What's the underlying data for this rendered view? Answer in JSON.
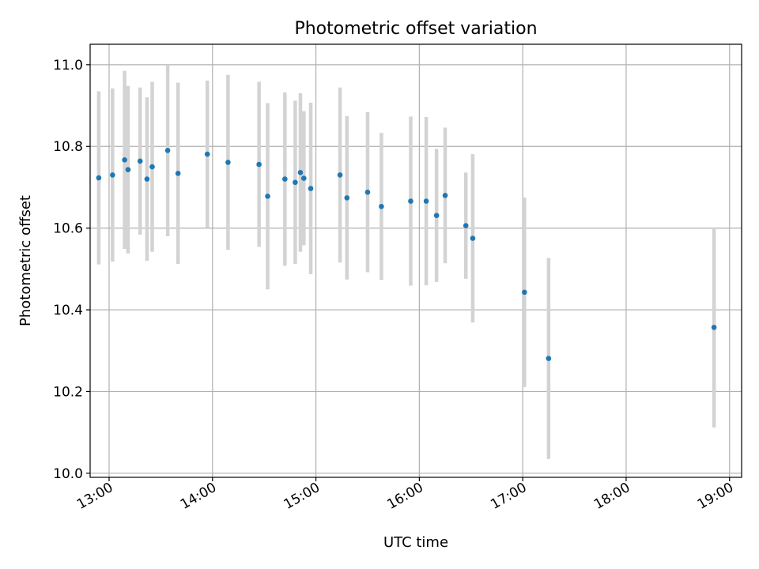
{
  "chart_data": {
    "type": "scatter",
    "title": "Photometric offset variation",
    "xlabel": "UTC time",
    "ylabel": "Photometric offset",
    "x_ticks": [
      "13:00",
      "14:00",
      "15:00",
      "16:00",
      "17:00",
      "18:00",
      "19:00"
    ],
    "y_ticks": [
      "10.0",
      "10.2",
      "10.4",
      "10.6",
      "10.8",
      "11.0"
    ],
    "xlim": [
      "12:49",
      "19:07"
    ],
    "ylim": [
      9.99,
      11.05
    ],
    "grid": true,
    "marker_color": "#1f77b4",
    "errorbar_color": "#d3d3d3",
    "points": [
      {
        "x": "12:54",
        "y": 10.723,
        "err": 0.212
      },
      {
        "x": "13:02",
        "y": 10.73,
        "err": 0.212
      },
      {
        "x": "13:09",
        "y": 10.767,
        "err": 0.218
      },
      {
        "x": "13:11",
        "y": 10.743,
        "err": 0.205
      },
      {
        "x": "13:18",
        "y": 10.764,
        "err": 0.18
      },
      {
        "x": "13:22",
        "y": 10.72,
        "err": 0.2
      },
      {
        "x": "13:25",
        "y": 10.75,
        "err": 0.208
      },
      {
        "x": "13:34",
        "y": 10.79,
        "err": 0.21
      },
      {
        "x": "13:40",
        "y": 10.734,
        "err": 0.222
      },
      {
        "x": "13:57",
        "y": 10.781,
        "err": 0.18
      },
      {
        "x": "14:09",
        "y": 10.761,
        "err": 0.214
      },
      {
        "x": "14:27",
        "y": 10.756,
        "err": 0.202
      },
      {
        "x": "14:32",
        "y": 10.678,
        "err": 0.228
      },
      {
        "x": "14:42",
        "y": 10.72,
        "err": 0.212
      },
      {
        "x": "14:48",
        "y": 10.712,
        "err": 0.2
      },
      {
        "x": "14:51",
        "y": 10.736,
        "err": 0.194
      },
      {
        "x": "14:53",
        "y": 10.722,
        "err": 0.164
      },
      {
        "x": "14:57",
        "y": 10.697,
        "err": 0.21
      },
      {
        "x": "15:14",
        "y": 10.73,
        "err": 0.214
      },
      {
        "x": "15:18",
        "y": 10.674,
        "err": 0.2
      },
      {
        "x": "15:30",
        "y": 10.688,
        "err": 0.196
      },
      {
        "x": "15:38",
        "y": 10.653,
        "err": 0.18
      },
      {
        "x": "15:55",
        "y": 10.666,
        "err": 0.207
      },
      {
        "x": "16:04",
        "y": 10.666,
        "err": 0.206
      },
      {
        "x": "16:10",
        "y": 10.631,
        "err": 0.163
      },
      {
        "x": "16:15",
        "y": 10.68,
        "err": 0.166
      },
      {
        "x": "16:27",
        "y": 10.606,
        "err": 0.13
      },
      {
        "x": "16:31",
        "y": 10.575,
        "err": 0.206
      },
      {
        "x": "17:01",
        "y": 10.443,
        "err": 0.232
      },
      {
        "x": "17:15",
        "y": 10.281,
        "err": 0.246
      },
      {
        "x": "18:51",
        "y": 10.357,
        "err": 0.245
      }
    ]
  }
}
